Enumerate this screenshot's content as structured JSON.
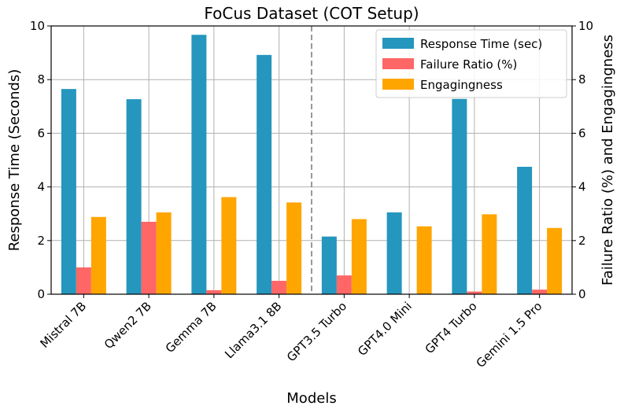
{
  "chart_data": {
    "type": "bar",
    "title": "FoCus Dataset (COT Setup)",
    "xlabel": "Models",
    "ylabel": "Response Time (Seconds)",
    "y2label": "Failure Ratio (%) and Engagingness",
    "ylim": [
      0,
      10
    ],
    "y2lim": [
      0,
      10
    ],
    "yticks": [
      "0",
      "2",
      "4",
      "6",
      "8",
      "10"
    ],
    "y2ticks": [
      "0",
      "2",
      "4",
      "6",
      "8",
      "10"
    ],
    "grid": true,
    "legend_position": "top-right",
    "categories": [
      "Mistral 7B",
      "Qwen2 7B",
      "Gemma 7B",
      "Llama3.1 8B",
      "GPT3.5 Turbo",
      "GPT4.0 Mini",
      "GPT4 Turbo",
      "Gemini 1.5 Pro"
    ],
    "divider_after_index": 3,
    "series": [
      {
        "name": "Response Time (sec)",
        "axis": "left",
        "color": "#2596be",
        "values": [
          7.65,
          7.27,
          9.67,
          8.92,
          2.15,
          3.05,
          7.28,
          4.75
        ]
      },
      {
        "name": "Failure Ratio (%)",
        "axis": "right",
        "color": "#ff6666",
        "values": [
          1.0,
          2.7,
          0.15,
          0.5,
          0.7,
          0.0,
          0.1,
          0.17
        ]
      },
      {
        "name": "Engagingness",
        "axis": "right",
        "color": "#ffa500",
        "values": [
          2.88,
          3.05,
          3.62,
          3.42,
          2.8,
          2.53,
          2.98,
          2.47
        ]
      }
    ]
  }
}
